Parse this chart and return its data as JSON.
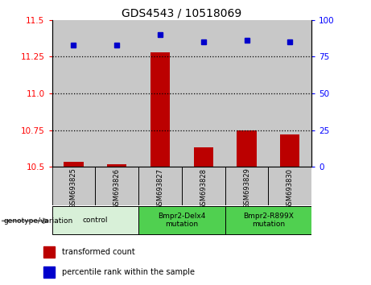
{
  "title": "GDS4543 / 10518069",
  "samples": [
    "GSM693825",
    "GSM693826",
    "GSM693827",
    "GSM693828",
    "GSM693829",
    "GSM693830"
  ],
  "red_values": [
    10.535,
    10.515,
    11.28,
    10.63,
    10.75,
    10.72
  ],
  "blue_values": [
    83,
    83,
    90,
    85,
    86,
    85
  ],
  "ylim_left": [
    10.5,
    11.5
  ],
  "ylim_right": [
    0,
    100
  ],
  "yticks_left": [
    10.5,
    10.75,
    11.0,
    11.25,
    11.5
  ],
  "yticks_right": [
    0,
    25,
    50,
    75,
    100
  ],
  "hlines": [
    10.75,
    11.0,
    11.25
  ],
  "bar_color": "#bb0000",
  "dot_color": "#0000cc",
  "sample_bg_color": "#c8c8c8",
  "control_bg": "#d8f0d8",
  "mutation_bg": "#50d050",
  "legend_items": [
    {
      "color": "#bb0000",
      "label": "transformed count"
    },
    {
      "color": "#0000cc",
      "label": "percentile rank within the sample"
    }
  ],
  "bar_bottom": 10.5,
  "bar_width": 0.45,
  "group_defs": [
    {
      "start": 0,
      "end": 1,
      "label": "control",
      "color": "#d8f0d8"
    },
    {
      "start": 2,
      "end": 3,
      "label": "Bmpr2-Delx4\nmutation",
      "color": "#50d050"
    },
    {
      "start": 4,
      "end": 5,
      "label": "Bmpr2-R899X\nmutation",
      "color": "#50d050"
    }
  ]
}
